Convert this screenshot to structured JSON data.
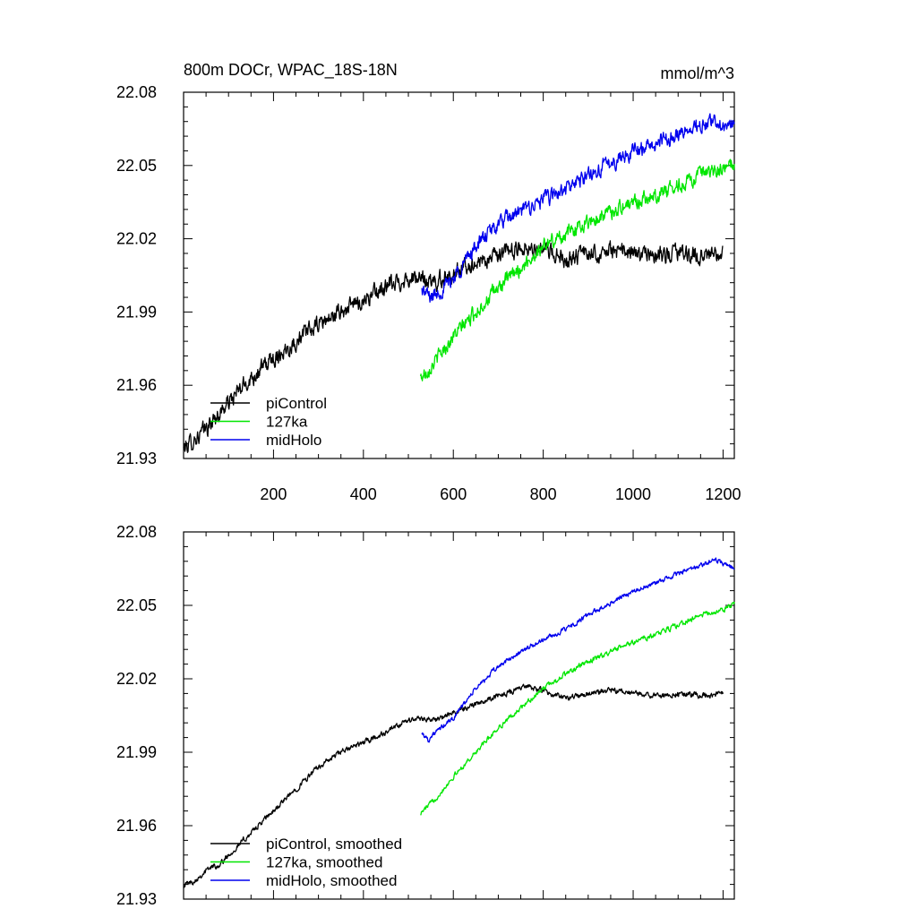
{
  "figure": {
    "title": "800m DOCr, WPAC_18S-18N",
    "units": "mmol/m^3"
  },
  "colors": {
    "piControl": "#000000",
    "127ka": "#00e600",
    "midHolo": "#0000ee"
  },
  "chart_data": [
    {
      "type": "line",
      "title": "800m DOCr, WPAC_18S-18N",
      "units": "mmol/m^3",
      "xlabel": "",
      "ylabel": "",
      "xlim": [
        0,
        1225
      ],
      "ylim": [
        21.93,
        22.08
      ],
      "x_ticks": [
        200,
        400,
        600,
        800,
        1000,
        1200
      ],
      "x_tick_labels": [
        "200",
        "400",
        "600",
        "800",
        "1000",
        "1200"
      ],
      "y_ticks": [
        21.93,
        21.96,
        21.99,
        22.02,
        22.05,
        22.08
      ],
      "y_tick_labels": [
        "21.93",
        "21.96",
        "21.99",
        "22.02",
        "22.05",
        "22.08"
      ],
      "legend_position": "bottom-left",
      "legend": [
        "piControl",
        "127ka",
        "midHolo"
      ],
      "series": [
        {
          "name": "piControl",
          "noise": 0.0028,
          "x": [
            0,
            50,
            100,
            150,
            200,
            250,
            300,
            350,
            400,
            450,
            500,
            530,
            560,
            600,
            650,
            700,
            760,
            800,
            850,
            900,
            950,
            1000,
            1050,
            1100,
            1150,
            1200
          ],
          "values": [
            21.934,
            21.942,
            21.953,
            21.963,
            21.971,
            21.978,
            21.985,
            21.99,
            21.995,
            22.0,
            22.004,
            22.003,
            22.002,
            22.006,
            22.01,
            22.013,
            22.017,
            22.015,
            22.012,
            22.014,
            22.015,
            22.014,
            22.013,
            22.014,
            22.013,
            22.013
          ]
        },
        {
          "name": "127ka",
          "noise": 0.0024,
          "x": [
            527,
            560,
            600,
            650,
            700,
            750,
            800,
            850,
            900,
            950,
            1000,
            1050,
            1100,
            1150,
            1200,
            1225
          ],
          "values": [
            21.963,
            21.97,
            21.98,
            21.99,
            22.0,
            22.008,
            22.017,
            22.022,
            22.027,
            22.031,
            22.035,
            22.038,
            22.042,
            22.046,
            22.048,
            22.051
          ]
        },
        {
          "name": "midHolo",
          "noise": 0.0025,
          "x": [
            530,
            550,
            580,
            600,
            650,
            700,
            750,
            800,
            850,
            900,
            950,
            1000,
            1050,
            1100,
            1150,
            1180,
            1200,
            1225
          ],
          "values": [
            21.999,
            21.996,
            22.0,
            22.004,
            22.017,
            22.026,
            22.031,
            22.036,
            22.04,
            22.046,
            22.051,
            22.056,
            22.059,
            22.063,
            22.066,
            22.068,
            22.067,
            22.066
          ]
        }
      ]
    },
    {
      "type": "line",
      "title": "",
      "xlabel": "",
      "ylabel": "",
      "xlim": [
        0,
        1225
      ],
      "ylim": [
        21.93,
        22.08
      ],
      "x_ticks": [
        200,
        400,
        600,
        800,
        1000,
        1200
      ],
      "x_tick_labels": [],
      "y_ticks": [
        21.93,
        21.96,
        21.99,
        22.02,
        22.05,
        22.08
      ],
      "y_tick_labels": [
        "21.93",
        "21.96",
        "21.99",
        "22.02",
        "22.05",
        "22.08"
      ],
      "legend_position": "bottom-left",
      "legend": [
        "piControl, smoothed",
        "127ka, smoothed",
        "midHolo, smoothed"
      ],
      "series": [
        {
          "name": "piControl, smoothed",
          "noise": 0.0009,
          "x": [
            0,
            20,
            40,
            60,
            80,
            100,
            150,
            200,
            250,
            300,
            350,
            400,
            450,
            500,
            530,
            560,
            600,
            650,
            700,
            760,
            800,
            850,
            900,
            950,
            1000,
            1050,
            1100,
            1150,
            1200
          ],
          "values": [
            21.936,
            21.937,
            21.94,
            21.943,
            21.944,
            21.948,
            21.957,
            21.966,
            21.975,
            21.984,
            21.99,
            21.994,
            21.998,
            22.003,
            22.004,
            22.003,
            22.006,
            22.01,
            22.013,
            22.017,
            22.015,
            22.012,
            22.014,
            22.015,
            22.014,
            22.013,
            22.014,
            22.013,
            22.014
          ]
        },
        {
          "name": "127ka, smoothed",
          "noise": 0.0008,
          "x": [
            527,
            560,
            600,
            650,
            700,
            750,
            800,
            850,
            900,
            950,
            1000,
            1050,
            1100,
            1150,
            1200,
            1225
          ],
          "values": [
            21.965,
            21.971,
            21.98,
            21.99,
            22.0,
            22.008,
            22.016,
            22.022,
            22.027,
            22.031,
            22.035,
            22.038,
            22.042,
            22.046,
            22.048,
            22.051
          ]
        },
        {
          "name": "midHolo, smoothed",
          "noise": 0.0008,
          "x": [
            530,
            545,
            560,
            580,
            600,
            650,
            700,
            750,
            800,
            850,
            900,
            950,
            1000,
            1050,
            1100,
            1150,
            1180,
            1200,
            1225
          ],
          "values": [
            21.998,
            21.995,
            21.998,
            22.001,
            22.004,
            22.016,
            22.025,
            22.031,
            22.036,
            22.04,
            22.046,
            22.051,
            22.056,
            22.059,
            22.063,
            22.066,
            22.069,
            22.067,
            22.065
          ]
        }
      ]
    }
  ]
}
